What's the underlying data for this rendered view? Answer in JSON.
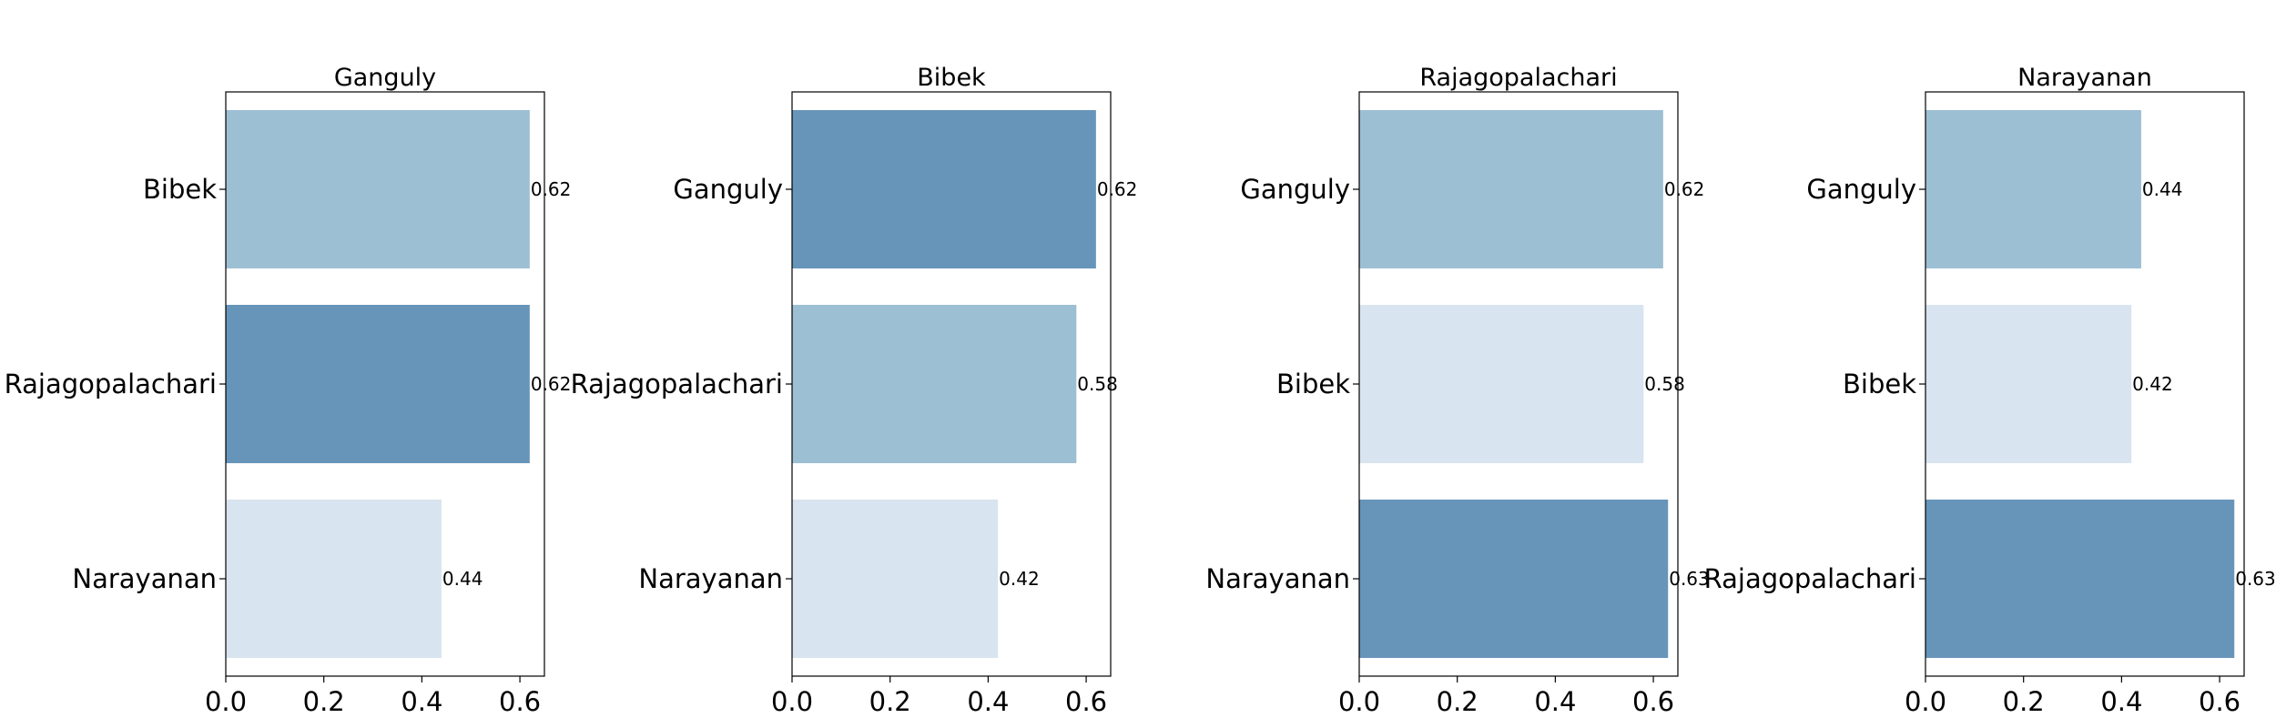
{
  "chart_data": [
    {
      "type": "bar",
      "orientation": "horizontal",
      "title": "Ganguly",
      "categories": [
        "Bibek",
        "Rajagopalachari",
        "Narayanan"
      ],
      "values": [
        0.62,
        0.62,
        0.44
      ],
      "value_labels": [
        "0.62",
        "0.62",
        "0.44"
      ],
      "bar_colors": [
        "#9dbfd4",
        "#6795ba",
        "#d8e4ef"
      ],
      "xlim": [
        0,
        0.65
      ],
      "xticks": [
        0.0,
        0.2,
        0.4,
        0.6
      ],
      "xtick_labels": [
        "0.0",
        "0.2",
        "0.4",
        "0.6"
      ],
      "xlabel": "",
      "ylabel": "",
      "grid": false,
      "legend": "none"
    },
    {
      "type": "bar",
      "orientation": "horizontal",
      "title": "Bibek",
      "categories": [
        "Ganguly",
        "Rajagopalachari",
        "Narayanan"
      ],
      "values": [
        0.62,
        0.58,
        0.42
      ],
      "value_labels": [
        "0.62",
        "0.58",
        "0.42"
      ],
      "bar_colors": [
        "#6795ba",
        "#9dbfd4",
        "#d8e4ef"
      ],
      "xlim": [
        0,
        0.65
      ],
      "xticks": [
        0.0,
        0.2,
        0.4,
        0.6
      ],
      "xtick_labels": [
        "0.0",
        "0.2",
        "0.4",
        "0.6"
      ],
      "xlabel": "",
      "ylabel": "",
      "grid": false,
      "legend": "none"
    },
    {
      "type": "bar",
      "orientation": "horizontal",
      "title": "Rajagopalachari",
      "categories": [
        "Ganguly",
        "Bibek",
        "Narayanan"
      ],
      "values": [
        0.62,
        0.58,
        0.63
      ],
      "value_labels": [
        "0.62",
        "0.58",
        "0.63"
      ],
      "bar_colors": [
        "#9dbfd4",
        "#d8e4ef",
        "#6795ba"
      ],
      "xlim": [
        0,
        0.65
      ],
      "xticks": [
        0.0,
        0.2,
        0.4,
        0.6
      ],
      "xtick_labels": [
        "0.0",
        "0.2",
        "0.4",
        "0.6"
      ],
      "xlabel": "",
      "ylabel": "",
      "grid": false,
      "legend": "none"
    },
    {
      "type": "bar",
      "orientation": "horizontal",
      "title": "Narayanan",
      "categories": [
        "Ganguly",
        "Bibek",
        "Rajagopalachari"
      ],
      "values": [
        0.44,
        0.42,
        0.63
      ],
      "value_labels": [
        "0.44",
        "0.42",
        "0.63"
      ],
      "bar_colors": [
        "#9dbfd4",
        "#d8e4ef",
        "#6795ba"
      ],
      "xlim": [
        0,
        0.65
      ],
      "xticks": [
        0.0,
        0.2,
        0.4,
        0.6
      ],
      "xtick_labels": [
        "0.0",
        "0.2",
        "0.4",
        "0.6"
      ],
      "xlabel": "",
      "ylabel": "",
      "grid": false,
      "legend": "none"
    }
  ]
}
